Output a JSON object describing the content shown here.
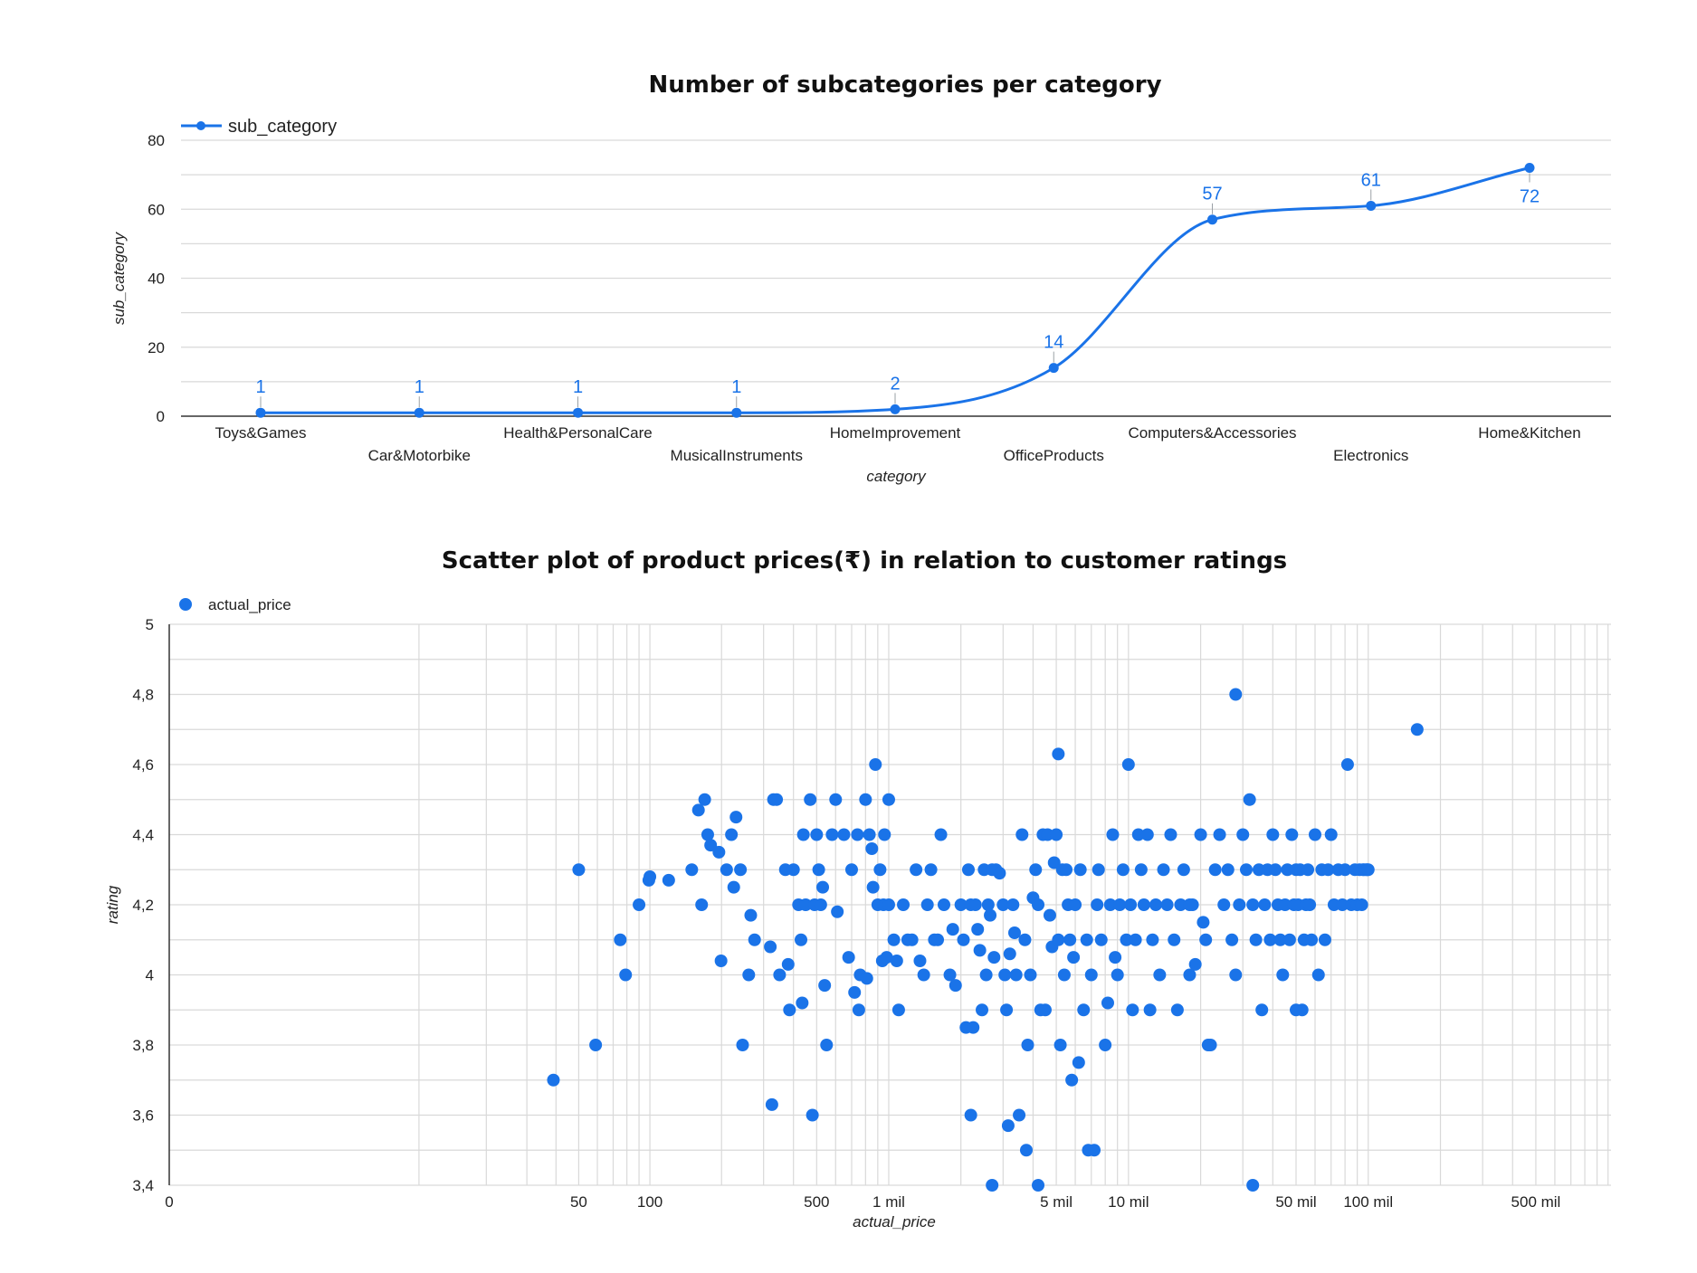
{
  "chart_data": [
    {
      "type": "line",
      "title": "Number of subcategories per category",
      "xlabel": "category",
      "ylabel": "sub_category",
      "ylim": [
        0,
        80
      ],
      "yticks": [
        0,
        20,
        40,
        60,
        80
      ],
      "smooth": true,
      "grid": true,
      "legend_position": "top-left",
      "categories": [
        "Toys&Games",
        "Car&Motorbike",
        "Health&PersonalCare",
        "MusicalInstruments",
        "HomeImprovement",
        "OfficeProducts",
        "Computers&Accessories",
        "Electronics",
        "Home&Kitchen"
      ],
      "series": [
        {
          "name": "sub_category",
          "color": "#1a73e8",
          "values": [
            1,
            1,
            1,
            1,
            2,
            14,
            57,
            61,
            72
          ]
        }
      ]
    },
    {
      "type": "scatter",
      "title": "Scatter plot of product prices(₹) in relation to customer ratings",
      "xlabel": "actual_price",
      "ylabel": "rating",
      "x_scale": "log",
      "ylim": [
        3.4,
        5
      ],
      "yticks": [
        3.4,
        3.6,
        3.8,
        4,
        4.2,
        4.4,
        4.6,
        4.8,
        5
      ],
      "ytick_labels": [
        "3,4",
        "3,6",
        "3,8",
        "4",
        "4,2",
        "4,4",
        "4,6",
        "4,8",
        "5"
      ],
      "xticks": [
        {
          "value": 0,
          "label": "0"
        },
        {
          "value": 50,
          "label": "50"
        },
        {
          "value": 100,
          "label": "100"
        },
        {
          "value": 500,
          "label": "500"
        },
        {
          "value": 1000,
          "label": "1 mil"
        },
        {
          "value": 5000,
          "label": "5 mil"
        },
        {
          "value": 10000,
          "label": "10 mil"
        },
        {
          "value": 50000,
          "label": "50 mil"
        },
        {
          "value": 100000,
          "label": "100 mil"
        },
        {
          "value": 500000,
          "label": "500 mil"
        }
      ],
      "grid": true,
      "legend_position": "top-left",
      "series": [
        {
          "name": "actual_price",
          "color": "#1a73e8",
          "points": [
            [
              39,
              3.7
            ],
            [
              50,
              4.3
            ],
            [
              59,
              3.8
            ],
            [
              75,
              4.1
            ],
            [
              79,
              4.0
            ],
            [
              90,
              4.2
            ],
            [
              99,
              4.27
            ],
            [
              100,
              4.28
            ],
            [
              120,
              4.27
            ],
            [
              150,
              4.3
            ],
            [
              160,
              4.47
            ],
            [
              165,
              4.2
            ],
            [
              170,
              4.5
            ],
            [
              175,
              4.4
            ],
            [
              180,
              4.37
            ],
            [
              195,
              4.35
            ],
            [
              199,
              4.04
            ],
            [
              210,
              4.3
            ],
            [
              220,
              4.4
            ],
            [
              225,
              4.25
            ],
            [
              230,
              4.45
            ],
            [
              240,
              4.3
            ],
            [
              245,
              3.8
            ],
            [
              260,
              4.0
            ],
            [
              265,
              4.17
            ],
            [
              275,
              4.1
            ],
            [
              320,
              4.08
            ],
            [
              325,
              3.63
            ],
            [
              330,
              4.5
            ],
            [
              340,
              4.5
            ],
            [
              350,
              4.0
            ],
            [
              370,
              4.3
            ],
            [
              380,
              4.03
            ],
            [
              385,
              3.9
            ],
            [
              400,
              4.3
            ],
            [
              420,
              4.2
            ],
            [
              430,
              4.1
            ],
            [
              435,
              3.92
            ],
            [
              440,
              4.4
            ],
            [
              450,
              4.2
            ],
            [
              470,
              4.5
            ],
            [
              480,
              3.6
            ],
            [
              490,
              4.2
            ],
            [
              500,
              4.4
            ],
            [
              510,
              4.3
            ],
            [
              520,
              4.2
            ],
            [
              530,
              4.25
            ],
            [
              540,
              3.97
            ],
            [
              550,
              3.8
            ],
            [
              580,
              4.4
            ],
            [
              600,
              4.5
            ],
            [
              610,
              4.18
            ],
            [
              650,
              4.4
            ],
            [
              680,
              4.05
            ],
            [
              700,
              4.3
            ],
            [
              720,
              3.95
            ],
            [
              740,
              4.4
            ],
            [
              750,
              3.9
            ],
            [
              760,
              4.0
            ],
            [
              800,
              4.5
            ],
            [
              810,
              3.99
            ],
            [
              830,
              4.4
            ],
            [
              850,
              4.36
            ],
            [
              860,
              4.25
            ],
            [
              880,
              4.6
            ],
            [
              900,
              4.2
            ],
            [
              920,
              4.3
            ],
            [
              940,
              4.04
            ],
            [
              950,
              4.2
            ],
            [
              960,
              4.4
            ],
            [
              980,
              4.05
            ],
            [
              1000,
              4.5
            ],
            [
              1000,
              4.2
            ],
            [
              1050,
              4.1
            ],
            [
              1080,
              4.04
            ],
            [
              1100,
              3.9
            ],
            [
              1150,
              4.2
            ],
            [
              1200,
              4.1
            ],
            [
              1250,
              4.1
            ],
            [
              1300,
              4.3
            ],
            [
              1350,
              4.04
            ],
            [
              1400,
              4.0
            ],
            [
              1450,
              4.2
            ],
            [
              1500,
              4.3
            ],
            [
              1550,
              4.1
            ],
            [
              1600,
              4.1
            ],
            [
              1650,
              4.4
            ],
            [
              1700,
              4.2
            ],
            [
              1800,
              4.0
            ],
            [
              1850,
              4.13
            ],
            [
              1900,
              3.97
            ],
            [
              2000,
              4.2
            ],
            [
              2050,
              4.1
            ],
            [
              2100,
              3.85
            ],
            [
              2150,
              4.3
            ],
            [
              2200,
              4.2
            ],
            [
              2250,
              3.85
            ],
            [
              2300,
              4.2
            ],
            [
              2350,
              4.13
            ],
            [
              2400,
              4.07
            ],
            [
              2450,
              3.9
            ],
            [
              2500,
              4.3
            ],
            [
              2550,
              4.0
            ],
            [
              2600,
              4.2
            ],
            [
              2650,
              4.17
            ],
            [
              2700,
              4.3
            ],
            [
              2750,
              4.05
            ],
            [
              2800,
              4.3
            ],
            [
              2900,
              4.29
            ],
            [
              3000,
              4.2
            ],
            [
              3050,
              4.0
            ],
            [
              3100,
              3.9
            ],
            [
              3200,
              4.06
            ],
            [
              3300,
              4.2
            ],
            [
              3350,
              4.12
            ],
            [
              3400,
              4.0
            ],
            [
              3500,
              3.6
            ],
            [
              3600,
              4.4
            ],
            [
              3700,
              4.1
            ],
            [
              3800,
              3.8
            ],
            [
              3900,
              4.0
            ],
            [
              4000,
              4.22
            ],
            [
              4100,
              4.3
            ],
            [
              4200,
              4.2
            ],
            [
              4300,
              3.9
            ],
            [
              4400,
              4.4
            ],
            [
              4500,
              3.9
            ],
            [
              4600,
              4.4
            ],
            [
              4700,
              4.17
            ],
            [
              4800,
              4.08
            ],
            [
              4900,
              4.32
            ],
            [
              5000,
              4.4
            ],
            [
              5100,
              4.1
            ],
            [
              5200,
              3.8
            ],
            [
              5300,
              4.3
            ],
            [
              5400,
              4.0
            ],
            [
              5500,
              4.3
            ],
            [
              5600,
              4.2
            ],
            [
              5700,
              4.1
            ],
            [
              5800,
              3.7
            ],
            [
              5900,
              4.05
            ],
            [
              6000,
              4.2
            ],
            [
              6200,
              3.75
            ],
            [
              6300,
              4.3
            ],
            [
              6500,
              3.9
            ],
            [
              6700,
              4.1
            ],
            [
              6800,
              3.5
            ],
            [
              7000,
              4.0
            ],
            [
              7200,
              3.5
            ],
            [
              7400,
              4.2
            ],
            [
              7500,
              4.3
            ],
            [
              7700,
              4.1
            ],
            [
              8000,
              3.8
            ],
            [
              8200,
              3.92
            ],
            [
              8400,
              4.2
            ],
            [
              8600,
              4.4
            ],
            [
              8800,
              4.05
            ],
            [
              9000,
              4.0
            ],
            [
              9200,
              4.2
            ],
            [
              9500,
              4.3
            ],
            [
              9800,
              4.1
            ],
            [
              10000,
              4.6
            ],
            [
              10200,
              4.2
            ],
            [
              10400,
              3.9
            ],
            [
              10700,
              4.1
            ],
            [
              11000,
              4.4
            ],
            [
              11300,
              4.3
            ],
            [
              11600,
              4.2
            ],
            [
              12000,
              4.4
            ],
            [
              12300,
              3.9
            ],
            [
              12600,
              4.1
            ],
            [
              13000,
              4.2
            ],
            [
              13500,
              4.0
            ],
            [
              14000,
              4.3
            ],
            [
              14500,
              4.2
            ],
            [
              15000,
              4.4
            ],
            [
              15500,
              4.1
            ],
            [
              16000,
              3.9
            ],
            [
              16500,
              4.2
            ],
            [
              17000,
              4.3
            ],
            [
              18000,
              4.0
            ],
            [
              18500,
              4.2
            ],
            [
              19000,
              4.03
            ],
            [
              20000,
              4.4
            ],
            [
              20500,
              4.15
            ],
            [
              21000,
              4.1
            ],
            [
              22000,
              3.8
            ],
            [
              23000,
              4.3
            ],
            [
              24000,
              4.4
            ],
            [
              25000,
              4.2
            ],
            [
              26000,
              4.3
            ],
            [
              27000,
              4.1
            ],
            [
              28000,
              4.0
            ],
            [
              29000,
              4.2
            ],
            [
              30000,
              4.4
            ],
            [
              31000,
              4.3
            ],
            [
              32000,
              4.5
            ],
            [
              33000,
              4.2
            ],
            [
              34000,
              4.1
            ],
            [
              35000,
              4.3
            ],
            [
              36000,
              3.9
            ],
            [
              37000,
              4.2
            ],
            [
              38000,
              4.3
            ],
            [
              39000,
              4.1
            ],
            [
              40000,
              4.4
            ],
            [
              41000,
              4.3
            ],
            [
              42000,
              4.2
            ],
            [
              43000,
              4.1
            ],
            [
              44000,
              4.0
            ],
            [
              45000,
              4.2
            ],
            [
              46000,
              4.3
            ],
            [
              47000,
              4.1
            ],
            [
              48000,
              4.4
            ],
            [
              49000,
              4.2
            ],
            [
              50000,
              4.3
            ],
            [
              51000,
              4.2
            ],
            [
              52000,
              4.3
            ],
            [
              53000,
              3.9
            ],
            [
              54000,
              4.1
            ],
            [
              55000,
              4.2
            ],
            [
              56000,
              4.3
            ],
            [
              57000,
              4.2
            ],
            [
              58000,
              4.1
            ],
            [
              60000,
              4.4
            ],
            [
              62000,
              4.0
            ],
            [
              64000,
              4.3
            ],
            [
              66000,
              4.1
            ],
            [
              68000,
              4.3
            ],
            [
              70000,
              4.4
            ],
            [
              72000,
              4.2
            ],
            [
              75000,
              4.3
            ],
            [
              78000,
              4.2
            ],
            [
              80000,
              4.3
            ],
            [
              82000,
              4.6
            ],
            [
              85000,
              4.2
            ],
            [
              88000,
              4.3
            ],
            [
              90000,
              4.2
            ],
            [
              92000,
              4.3
            ],
            [
              94000,
              4.2
            ],
            [
              95000,
              4.3
            ],
            [
              96000,
              4.3
            ],
            [
              98000,
              4.3
            ],
            [
              99000,
              4.3
            ],
            [
              100000,
              4.3
            ],
            [
              28000,
              4.8
            ],
            [
              33000,
              3.4
            ],
            [
              5100,
              4.63
            ],
            [
              4200,
              3.4
            ],
            [
              2700,
              3.4
            ],
            [
              2200,
              3.6
            ],
            [
              3150,
              3.57
            ],
            [
              3750,
              3.5
            ],
            [
              50000,
              3.9
            ],
            [
              18000,
              4.2
            ],
            [
              21500,
              3.8
            ],
            [
              160000,
              4.7
            ]
          ]
        }
      ]
    }
  ]
}
